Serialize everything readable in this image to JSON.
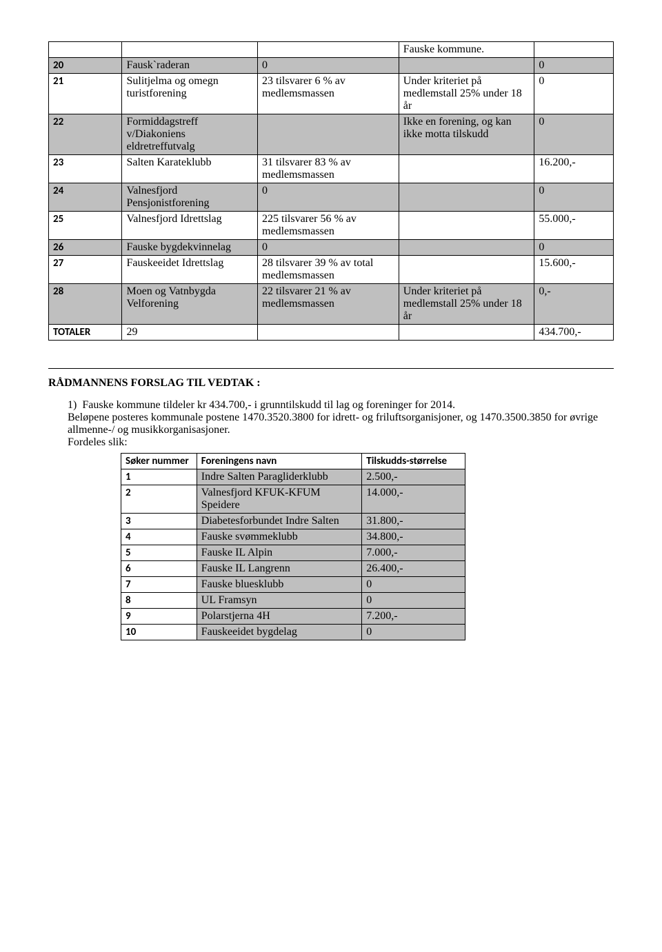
{
  "main_table": {
    "rows": [
      {
        "gray": false,
        "c1": "",
        "c2": "",
        "c3": "",
        "c4": "Fauske kommune.",
        "c5": ""
      },
      {
        "gray": true,
        "c1": "20",
        "c2": "Fausk`raderan",
        "c3": "0",
        "c4": "",
        "c5": "0"
      },
      {
        "gray": false,
        "c1": "21",
        "c2": "Sulitjelma og omegn turistforening",
        "c3": "23 tilsvarer 6 % av medlemsmassen",
        "c4": "Under kriteriet på medlemstall 25% under 18 år",
        "c5": "0"
      },
      {
        "gray": true,
        "c1": "22",
        "c2": "Formiddagstreff v/Diakoniens eldretreffutvalg",
        "c3": "",
        "c4": "Ikke en forening, og kan ikke motta tilskudd",
        "c5": "0"
      },
      {
        "gray": false,
        "c1": "23",
        "c2": "Salten Karateklubb",
        "c3": "31 tilsvarer 83 % av medlemsmassen",
        "c4": "",
        "c5": "16.200,-"
      },
      {
        "gray": true,
        "c1": "24",
        "c2": "Valnesfjord Pensjonistforening",
        "c3": "0",
        "c4": "",
        "c5": "0"
      },
      {
        "gray": false,
        "c1": "25",
        "c2": "Valnesfjord Idrettslag",
        "c3": "225 tilsvarer 56 % av medlemsmassen",
        "c4": "",
        "c5": "55.000,-"
      },
      {
        "gray": true,
        "c1": "26",
        "c2": "Fauske bygdekvinnelag",
        "c3": "0",
        "c4": "",
        "c5": "0"
      },
      {
        "gray": false,
        "c1": "27",
        "c2": "Fauskeeidet Idrettslag",
        "c3": "28 tilsvarer 39 % av total medlemsmassen",
        "c4": "",
        "c5": "15.600,-"
      },
      {
        "gray": true,
        "c1": "28",
        "c2": "Moen og Vatnbygda Velforening",
        "c3": "22 tilsvarer 21 % av medlemsmassen",
        "c4": "Under kriteriet på medlemstall 25% under 18 år",
        "c5": "0,-"
      },
      {
        "gray": false,
        "c1": "TOTALER",
        "c2": "29",
        "c3": "",
        "c4": "",
        "c5": "434.700,-"
      }
    ]
  },
  "heading": "RÅDMANNENS FORSLAG TIL VEDTAK :",
  "list_item": "Fauske kommune tildeler kr 434.700,- i grunntilskudd til lag og foreninger for 2014.",
  "para2": "Beløpene posteres kommunale postene 1470.3520.3800 for idrett- og friluftsorganisjoner, og 1470.3500.3850 for øvrige allmenne-/ og musikkorganisasjoner.",
  "para3": "Fordeles slik:",
  "inner_table": {
    "headers": {
      "h1": "Søker nummer",
      "h2": "Foreningens navn",
      "h3": "Tilskudds-størrelse"
    },
    "rows": [
      {
        "n": "1",
        "name": "Indre Salten Paragliderklubb",
        "amt": "2.500,-"
      },
      {
        "n": "2",
        "name": "Valnesfjord KFUK-KFUM Speidere",
        "amt": "14.000,-"
      },
      {
        "n": "3",
        "name": "Diabetesforbundet Indre Salten",
        "amt": "31.800,-"
      },
      {
        "n": "4",
        "name": "Fauske svømmeklubb",
        "amt": "34.800,-"
      },
      {
        "n": "5",
        "name": "Fauske IL Alpin",
        "amt": "7.000,-"
      },
      {
        "n": "6",
        "name": "Fauske IL Langrenn",
        "amt": "26.400,-"
      },
      {
        "n": "7",
        "name": "Fauske bluesklubb",
        "amt": "0"
      },
      {
        "n": "8",
        "name": "UL Framsyn",
        "amt": "0"
      },
      {
        "n": "9",
        "name": "Polarstjerna 4H",
        "amt": "7.200,-"
      },
      {
        "n": "10",
        "name": "Fauskeeidet bygdelag",
        "amt": "0"
      }
    ]
  }
}
